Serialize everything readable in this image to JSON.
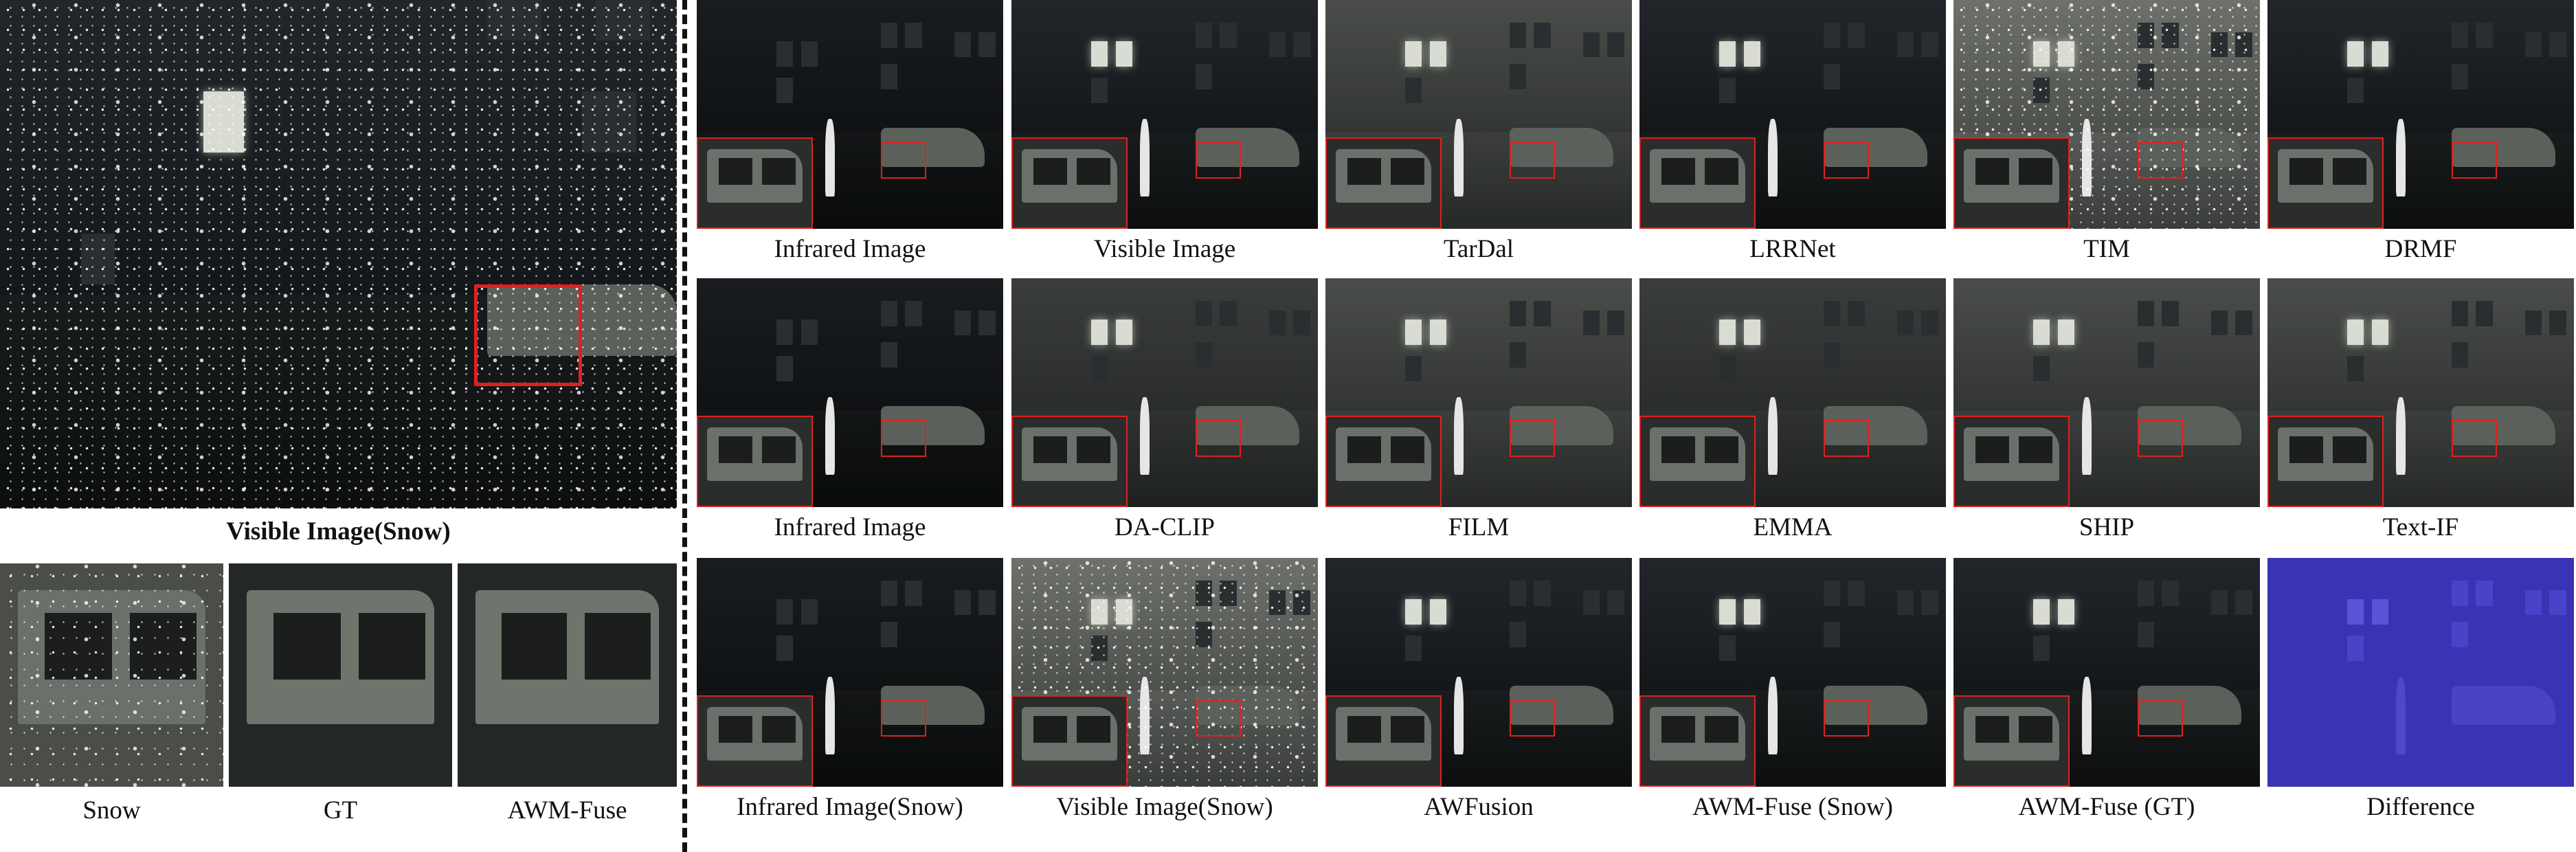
{
  "left": {
    "main_caption": "Visible Image(Snow)",
    "crops": [
      {
        "label": "Snow",
        "style": "snow"
      },
      {
        "label": "GT",
        "style": "clean"
      },
      {
        "label": "AWM-Fuse",
        "style": "clean"
      }
    ]
  },
  "grid": [
    [
      "Infrared Image",
      "Visible Image",
      "TarDal",
      "LRRNet",
      "TIM",
      "DRMF"
    ],
    [
      "Infrared Image",
      "DA-CLIP",
      "FILM",
      "EMMA",
      "SHIP",
      "Text-IF"
    ],
    [
      "Infrared Image(Snow)",
      "Visible Image(Snow)",
      "AWFusion",
      "AWM-Fuse (Snow)",
      "AWM-Fuse (GT)",
      "Difference"
    ]
  ],
  "colors": {
    "highlight_box": "#e02020",
    "difference_map": "#3a33b4"
  }
}
